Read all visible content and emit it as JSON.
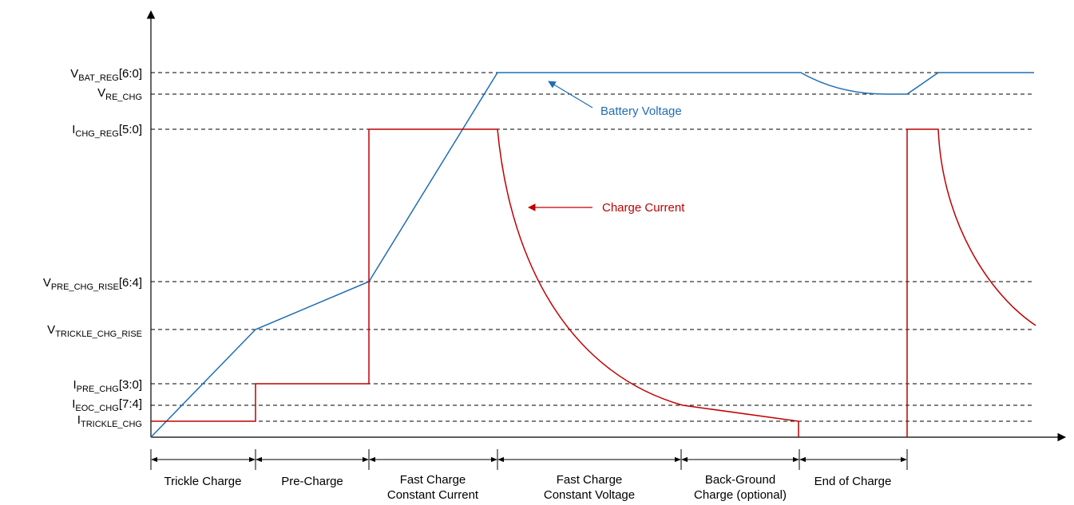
{
  "colors": {
    "voltage": "#1f6eb5",
    "current": "#c00000",
    "axis": "#000000"
  },
  "levels": [
    {
      "id": "vbat_reg",
      "main": "V",
      "sub": "BAT_REG",
      "suffix": "[6:0]"
    },
    {
      "id": "vre_chg",
      "main": "V",
      "sub": "RE_CHG",
      "suffix": ""
    },
    {
      "id": "ichg_reg",
      "main": "I",
      "sub": "CHG_REG",
      "suffix": "[5:0]"
    },
    {
      "id": "vpre_chg_rise",
      "main": "V",
      "sub": "PRE_CHG_RISE",
      "suffix": "[6:4]"
    },
    {
      "id": "vtrickle_chg_rise",
      "main": "V",
      "sub": "TRICKLE_CHG_RISE",
      "suffix": ""
    },
    {
      "id": "ipre_chg",
      "main": "I",
      "sub": "PRE_CHG",
      "suffix": "[3:0]"
    },
    {
      "id": "ieoc_chg",
      "main": "I",
      "sub": "EOC_CHG",
      "suffix": "[7:4]"
    },
    {
      "id": "itrickle_chg",
      "main": "I",
      "sub": "TRICKLE_CHG",
      "suffix": ""
    }
  ],
  "annotations": {
    "battery_voltage": "Battery Voltage",
    "charge_current": "Charge Current"
  },
  "phases": [
    {
      "line1": "Trickle Charge",
      "line2": ""
    },
    {
      "line1": "Pre-Charge",
      "line2": ""
    },
    {
      "line1": "Fast Charge",
      "line2": "Constant Current"
    },
    {
      "line1": "Fast Charge",
      "line2": "Constant Voltage"
    },
    {
      "line1": "Back-Ground",
      "line2": "Charge (optional)"
    },
    {
      "line1": "End of Charge",
      "line2": ""
    }
  ]
}
